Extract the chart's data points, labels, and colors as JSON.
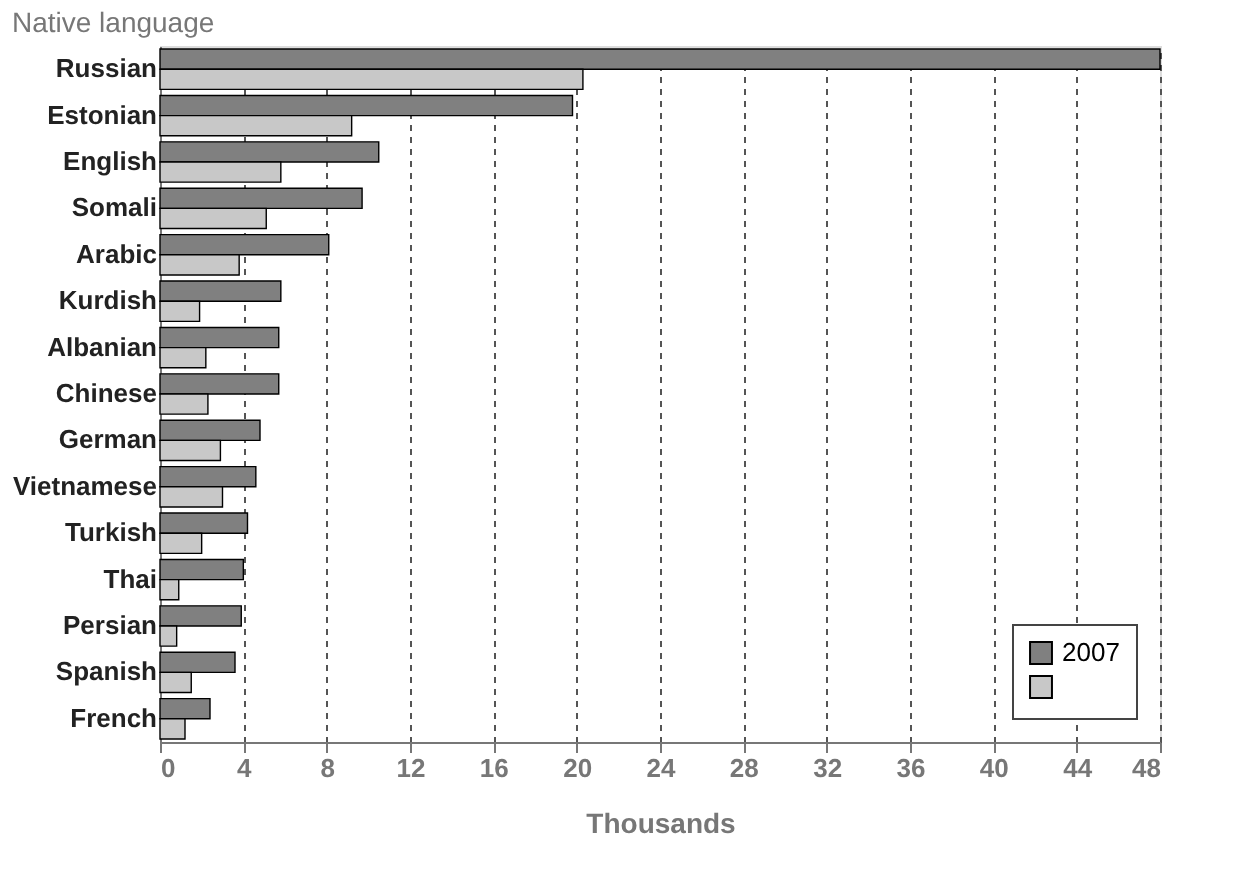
{
  "chart_data": {
    "type": "bar",
    "orientation": "horizontal",
    "title": "Native language",
    "xlabel": "Thousands",
    "categories": [
      "Russian",
      "Estonian",
      "English",
      "Somali",
      "Arabic",
      "Kurdish",
      "Albanian",
      "Chinese",
      "German",
      "Vietnamese",
      "Turkish",
      "Thai",
      "Persian",
      "Spanish",
      "French"
    ],
    "series": [
      {
        "name": "2007",
        "color": "#808080",
        "values": [
          48,
          19.8,
          10.5,
          9.7,
          8.1,
          5.8,
          5.7,
          5.7,
          4.8,
          4.6,
          4.2,
          4.0,
          3.9,
          3.6,
          2.4
        ]
      },
      {
        "color": "#c8c8c8",
        "values": [
          20.3,
          9.2,
          5.8,
          5.1,
          3.8,
          1.9,
          2.2,
          2.3,
          2.9,
          3.0,
          2.0,
          0.9,
          0.8,
          1.5,
          1.2
        ]
      }
    ],
    "xlim": [
      0,
      48
    ],
    "xticks": [
      0,
      4,
      8,
      12,
      16,
      20,
      24,
      28,
      32,
      36,
      40,
      44,
      48
    ],
    "grid": "x",
    "legend": "bottom right"
  }
}
